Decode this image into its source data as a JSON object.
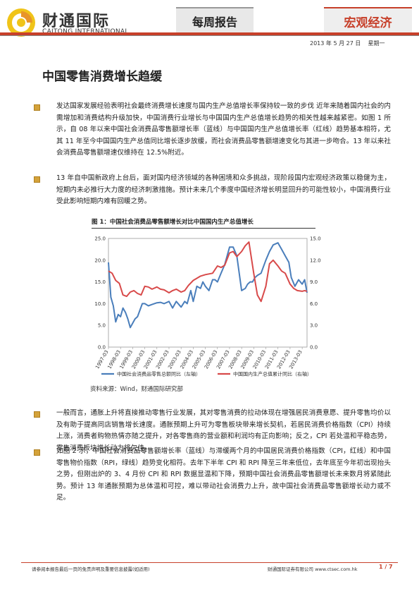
{
  "header": {
    "logo_cn": "财通国际",
    "logo_en": "CAITONG INTERNATIONAL",
    "tab_weekly": "每周报告",
    "tab_macro": "宏观经济",
    "date": "2013 年 5 月 27 日",
    "weekday": "星期一",
    "accent_color": "#c7402a"
  },
  "title": "中国零售消费增长趋缓",
  "paragraphs": [
    "发达国家发展经验表明社会最终消费增长速度与国内生产总值增长率保持较一致的步伐 近年来随着国内社会的内需增加和消费结构升级加快，中国消费行业增长与中国国内生产总值增长趋势的相关性越来越紧密。如图 1 所示，自 08 年以来中国社会消费品零售额增长率（蓝线）与中国国内生产总值增长率（红线）趋势基本相符，尤其 11 年至今中国国内生产总值同比增长逐步放缓，而社会消费品零售额增速变化与其进一步吻合。13 年以来社会消费品零售额增速仅维持在 12.5%附近。",
    "13 年自中国新政府上台后，面对国内经济领域的各种困境和众多挑战，现阶段国内宏观经济政策以稳健为主，短期内未必推行大力度的经济刺激措施。预计未来几个季度中国经济增长明显回升的可能性较小，中国消费行业受此影响短期内难有回暖之势。",
    "一般而言，通胀上升将直接推动零售行业发展，其对零售消费的拉动体现在增强居民消费意愿、提升零售均价以及有助于提高同店销售增长速度。通胀预期上升可为零售板块带来增长契机，若居民消费价格指数（CPI）持续上涨，消费者购物热情亦随之提升，对各零售商的营业额和利润均有正向影响；反之，CPI 若处温和平稳态势，零售消费板块增长动力将欠佳。",
    "如图 2 示，中国社会消费品零售额增长率（蓝线）与滞缓两个月的中国居民消费价格指数（CPI，红线）和中国零售物价指数（RPI，绿线）趋势变化相符。去年下半年 CPI 和 RPI 降至三年来低位，去年底至今年初出现抬头之势，但刚出炉的 3、4 月份 CPI 和 RPI 数据显温和下降，预期中国社会消费品零售额增长未来数月将紧随此势。预计 13 年通胀预期为总体温和可控，难以带动社会消费力上升，故中国社会消费品零售额增长动力或不足。"
  ],
  "figure": {
    "title": "图 1：中国社会消费品零售额增长对比中国国内生产总值增长",
    "source": "资料来源：Wind，财通国际研究部"
  },
  "chart_data": {
    "type": "line",
    "x_ticks": [
      "1997-03",
      "1998-03",
      "1999-03",
      "2000-03",
      "2001-03",
      "2002-03",
      "2003-03",
      "2004-03",
      "2005-03",
      "2006-03",
      "2007-03",
      "2008-03",
      "2009-03",
      "2010-03",
      "2011-03",
      "2012-03",
      "2013-03"
    ],
    "yleft_ticks": [
      "0.0",
      "5.0",
      "10.0",
      "15.0",
      "20.0",
      "25.0"
    ],
    "yright_ticks": [
      "0.0",
      "3.0",
      "6.0",
      "9.0",
      "12.0",
      "15.0"
    ],
    "yleft_lim": [
      0,
      25
    ],
    "yright_lim": [
      0,
      15
    ],
    "x_range": [
      1997.0,
      2013.4
    ],
    "series": [
      {
        "name": "中国社会消费品零售总额同比（左轴）",
        "axis": "left",
        "color": "#4a7ebb",
        "x": [
          1997.0,
          1997.2,
          1997.4,
          1997.6,
          1997.8,
          1998.0,
          1998.2,
          1998.4,
          1998.6,
          1998.8,
          1999.0,
          1999.2,
          1999.4,
          1999.6,
          1999.8,
          2000.0,
          2000.3,
          2000.6,
          2001.0,
          2001.3,
          2001.6,
          2002.0,
          2002.3,
          2002.6,
          2003.0,
          2003.3,
          2003.5,
          2003.8,
          2004.0,
          2004.3,
          2004.6,
          2004.8,
          2005.0,
          2005.3,
          2005.6,
          2005.8,
          2006.0,
          2006.3,
          2006.6,
          2007.0,
          2007.3,
          2007.6,
          2008.0,
          2008.3,
          2008.5,
          2008.7,
          2008.9,
          2009.1,
          2009.3,
          2009.6,
          2010.0,
          2010.3,
          2010.6,
          2011.0,
          2011.3,
          2011.6,
          2011.9,
          2012.1,
          2012.4,
          2012.7,
          2013.0,
          2013.2,
          2013.4
        ],
        "values": [
          19.5,
          11.5,
          9.5,
          5.8,
          7.5,
          7.0,
          9.0,
          8.0,
          6.5,
          4.5,
          5.5,
          6.5,
          7.0,
          8.5,
          10.0,
          10.0,
          9.5,
          9.8,
          10.2,
          10.3,
          10.0,
          10.5,
          9.0,
          10.5,
          9.2,
          10.5,
          10.0,
          13.0,
          10.5,
          14.0,
          13.5,
          15.0,
          14.0,
          13.0,
          15.5,
          15.5,
          15.0,
          17.0,
          19.0,
          23.0,
          23.0,
          21.0,
          13.0,
          13.5,
          14.5,
          15.0,
          15.0,
          16.0,
          16.5,
          17.0,
          20.0,
          22.0,
          23.5,
          24.0,
          22.5,
          21.0,
          19.5,
          16.0,
          14.0,
          15.5,
          14.5,
          15.5,
          12.5
        ]
      },
      {
        "name": "中国国内生产总值累计同比（右轴）",
        "axis": "right",
        "color": "#d84a4a",
        "x": [
          1997.0,
          1997.3,
          1997.6,
          1997.9,
          1998.2,
          1998.5,
          1998.8,
          1999.1,
          1999.4,
          1999.7,
          2000.0,
          2000.3,
          2000.6,
          2001.0,
          2001.3,
          2001.6,
          2002.0,
          2002.3,
          2002.6,
          2003.0,
          2003.3,
          2003.6,
          2004.0,
          2004.3,
          2004.6,
          2005.0,
          2005.3,
          2005.6,
          2006.0,
          2006.3,
          2006.6,
          2007.0,
          2007.3,
          2007.6,
          2008.0,
          2008.3,
          2008.6,
          2009.0,
          2009.3,
          2009.6,
          2010.0,
          2010.3,
          2010.6,
          2011.0,
          2011.3,
          2011.6,
          2012.0,
          2012.3,
          2012.6,
          2013.0,
          2013.2,
          2013.4
        ],
        "values": [
          10.5,
          10.2,
          9.2,
          8.8,
          7.2,
          7.0,
          7.6,
          7.8,
          7.4,
          7.2,
          8.4,
          8.3,
          8.0,
          8.3,
          8.0,
          7.9,
          7.5,
          7.8,
          8.0,
          7.6,
          7.8,
          8.5,
          9.2,
          9.5,
          9.8,
          10.0,
          10.1,
          10.2,
          11.2,
          11.0,
          11.3,
          13.0,
          13.2,
          12.5,
          13.2,
          14.0,
          14.5,
          10.2,
          7.2,
          6.3,
          8.4,
          11.5,
          12.0,
          11.2,
          10.5,
          10.2,
          8.7,
          8.1,
          7.8,
          7.7,
          7.8,
          7.7
        ]
      }
    ]
  },
  "footer": {
    "left": "请参阅本报告最后一页的免责声明及重要信息披露(如适用)",
    "mid": "财通国际证券有限公司 www.ctsec.com.hk",
    "page": "1 / 7"
  }
}
